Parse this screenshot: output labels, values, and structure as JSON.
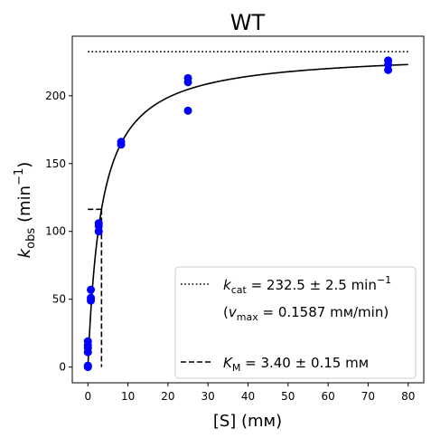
{
  "chart_data": {
    "type": "scatter",
    "title": "WT",
    "xlabel": "[S] (mм)",
    "ylabel_main": "k",
    "ylabel_sub": "obs",
    "ylabel_unit": "(min",
    "ylabel_exp": "−1",
    "ylabel_close": ")",
    "xlim": [
      -3.9,
      83.9
    ],
    "ylim": [
      -11.6,
      243.9
    ],
    "xticks": [
      0,
      10,
      20,
      30,
      40,
      50,
      60,
      70,
      80
    ],
    "yticks": [
      0,
      50,
      100,
      150,
      200
    ],
    "grid": false,
    "legend_position": "lower-right",
    "colors": {
      "points": "#0000ff",
      "lines": "#000000"
    },
    "points": [
      {
        "x": 0,
        "y": 1
      },
      {
        "x": 0,
        "y": 0
      },
      {
        "x": 0,
        "y": 11
      },
      {
        "x": 0,
        "y": 14
      },
      {
        "x": 0,
        "y": 16
      },
      {
        "x": 0,
        "y": 19
      },
      {
        "x": 0.74,
        "y": 49
      },
      {
        "x": 0.74,
        "y": 51
      },
      {
        "x": 0.74,
        "y": 57
      },
      {
        "x": 2.7,
        "y": 100
      },
      {
        "x": 2.7,
        "y": 104
      },
      {
        "x": 2.7,
        "y": 106
      },
      {
        "x": 8.3,
        "y": 164
      },
      {
        "x": 8.3,
        "y": 166
      },
      {
        "x": 25,
        "y": 189
      },
      {
        "x": 25,
        "y": 210
      },
      {
        "x": 25,
        "y": 213
      },
      {
        "x": 75,
        "y": 219
      },
      {
        "x": 75,
        "y": 223
      },
      {
        "x": 75,
        "y": 226
      }
    ],
    "fit": {
      "model": "michaelis-menten",
      "kcat": 232.5,
      "KM": 3.4,
      "x_range": [
        0,
        80
      ]
    },
    "kcat_line": {
      "y": 232.5,
      "x_range": [
        0,
        80
      ]
    },
    "km_marker": {
      "x": 3.4,
      "y": 116.25,
      "x_start": 0
    },
    "legend": {
      "kcat_sym": "k",
      "kcat_sub": "cat",
      "kcat_value": " = 232.5 ± 2.5 min",
      "kcat_exp": "−1",
      "vmax_open": "(",
      "vmax_sym": "v",
      "vmax_sub": "max",
      "vmax_value": " = 0.1587 mм/min)",
      "km_sym": "K",
      "km_sub": "M",
      "km_value": " = 3.40 ± 0.15 mм"
    }
  }
}
